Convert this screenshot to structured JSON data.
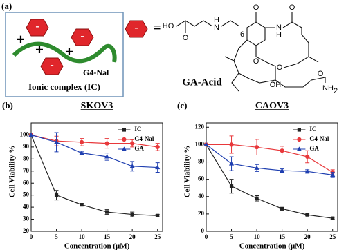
{
  "diagram": {
    "panel": "(a)",
    "minus": "-",
    "plus": "+",
    "polymer": "G4-Nal",
    "complex": "Ionic complex (IC)",
    "equals": "=",
    "compound": "GA-Acid",
    "atoms": [
      "HO",
      "O",
      "N",
      "H",
      "6",
      "O",
      "N",
      "H",
      "O",
      "O",
      "OH",
      "O",
      "O",
      "NH",
      "2"
    ]
  },
  "chart_data": [
    {
      "type": "line",
      "panel": "(b)",
      "title": "SKOV3",
      "xlabel": "Concentration (μM)",
      "ylabel": "Cell Viability %",
      "x": [
        0,
        5,
        10,
        15,
        20,
        25
      ],
      "xlim": [
        0,
        26
      ],
      "xticks": [
        0,
        5,
        10,
        15,
        20,
        25
      ],
      "ylim": [
        20,
        110
      ],
      "yticks": [
        20,
        30,
        40,
        50,
        60,
        70,
        80,
        90,
        100
      ],
      "legend": "top-right",
      "series": [
        {
          "name": "IC",
          "color": "#222222",
          "marker": "square",
          "values": [
            100,
            50,
            42,
            36,
            34,
            33
          ],
          "errors": [
            0,
            4,
            1,
            2,
            2,
            1
          ]
        },
        {
          "name": "G4-Nal",
          "color": "#e8383b",
          "marker": "circle",
          "values": [
            100,
            95,
            94,
            93,
            93,
            90
          ],
          "errors": [
            0,
            4,
            3,
            4,
            3,
            3
          ]
        },
        {
          "name": "GA",
          "color": "#1f3fb0",
          "marker": "triangle",
          "values": [
            100,
            94,
            85,
            82,
            74,
            73
          ],
          "errors": [
            0,
            8,
            1,
            3,
            4,
            4
          ]
        }
      ]
    },
    {
      "type": "line",
      "panel": "(c)",
      "title": "CAOV3",
      "xlabel": "Concentration (μM)",
      "ylabel": "Cell Viability %",
      "x": [
        0,
        5,
        10,
        15,
        20,
        25
      ],
      "xlim": [
        0,
        26
      ],
      "xticks": [
        0,
        5,
        10,
        15,
        20,
        25
      ],
      "ylim": [
        0,
        125
      ],
      "yticks": [
        0,
        20,
        40,
        60,
        80,
        100,
        120
      ],
      "legend": "top-right",
      "series": [
        {
          "name": "IC",
          "color": "#222222",
          "marker": "square",
          "values": [
            100,
            52,
            38,
            26,
            19,
            15
          ],
          "errors": [
            0,
            8,
            3,
            1,
            1,
            1
          ]
        },
        {
          "name": "G4-Nal",
          "color": "#e8383b",
          "marker": "circle",
          "values": [
            100,
            100,
            97,
            93,
            86,
            68
          ],
          "errors": [
            0,
            10,
            9,
            5,
            7,
            3
          ]
        },
        {
          "name": "GA",
          "color": "#1f3fb0",
          "marker": "triangle",
          "values": [
            100,
            78,
            73,
            70,
            69,
            65
          ],
          "errors": [
            0,
            8,
            4,
            2,
            2,
            3
          ]
        }
      ]
    }
  ]
}
